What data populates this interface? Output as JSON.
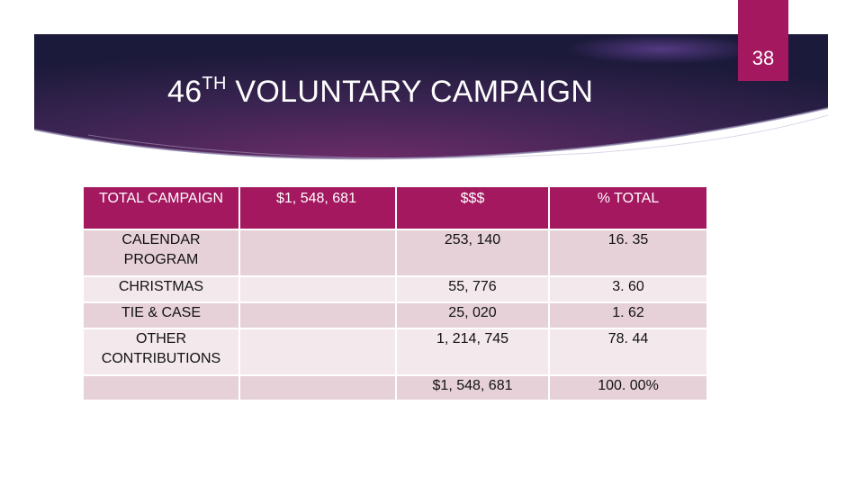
{
  "slide": {
    "number": "38",
    "title_prefix": "46",
    "title_super": "TH",
    "title_rest": " VOLUNTARY CAMPAIGN"
  },
  "table": {
    "header": {
      "label": "TOTAL CAMPAIGN",
      "total": "$1, 548, 681",
      "col_amount": "$$$",
      "col_percent": "% TOTAL"
    },
    "rows": [
      {
        "label": "CALENDAR PROGRAM",
        "amount": "253, 140",
        "percent": "16. 35"
      },
      {
        "label": "CHRISTMAS",
        "amount": "55, 776",
        "percent": "3. 60"
      },
      {
        "label": "TIE & CASE",
        "amount": "25, 020",
        "percent": "1. 62"
      },
      {
        "label": "OTHER CONTRIBUTIONS",
        "amount": "1, 214, 745",
        "percent": "78. 44"
      },
      {
        "label": "",
        "amount": "$1, 548, 681",
        "percent": "100. 00%"
      }
    ]
  },
  "colors": {
    "accent": "#a3185f",
    "banner_dark": "#1f1a3e",
    "row_dark": "#e7d1d9",
    "row_light": "#f3e8ec"
  }
}
